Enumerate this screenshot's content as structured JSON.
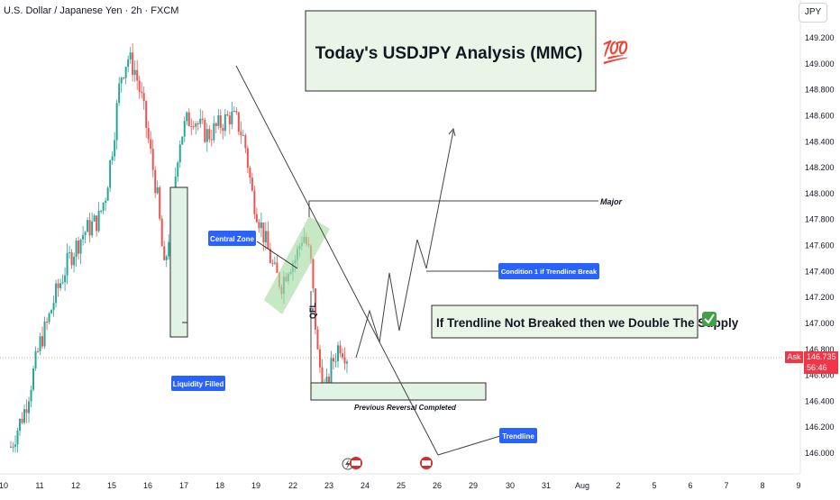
{
  "header": {
    "title": "U.S. Dollar / Japanese Yen · 2h · FXCM",
    "axis_unit": "JPY"
  },
  "price": {
    "ask_label": "Ask",
    "last": "146.735",
    "countdown": "56:46",
    "color": "#f23645"
  },
  "headline": {
    "text": "Today's USDJPY Analysis  (MMC)",
    "emoji": "💯"
  },
  "labels": {
    "major": "Major",
    "central_zone": "Central Zone",
    "liquidity_filled": "Liquidity Filled",
    "condition_1": "Condition 1 if Trendline Break",
    "double_supply": "If Trendline Not Breaked then we Double The Supply",
    "check_emoji": "✅",
    "previous_reversal": "Previous Reversal Completed",
    "trendline": "Trendline",
    "qfl": "QFL"
  },
  "colors": {
    "up": "#26a69a",
    "down": "#ef5350",
    "label_blue": "#2962ff",
    "zone_green": "#e1f3e4",
    "zone_border": "#2b2b2b",
    "band_green": "#b7e4b5"
  },
  "chart_data": {
    "type": "candlestick",
    "symbol": "USDJPY",
    "timeframe": "2h",
    "y_ticks": [
      "149.200",
      "149.000",
      "148.800",
      "148.600",
      "148.400",
      "148.200",
      "148.000",
      "147.800",
      "147.600",
      "147.400",
      "147.200",
      "147.000",
      "146.800",
      "146.600",
      "146.400",
      "146.200",
      "146.000"
    ],
    "x_ticks": [
      "10",
      "11",
      "12",
      "15",
      "16",
      "17",
      "18",
      "19",
      "22",
      "23",
      "24",
      "25",
      "26",
      "29",
      "30",
      "31",
      "Aug",
      "2",
      "5",
      "6",
      "7",
      "8",
      "9"
    ],
    "ylim": [
      145.95,
      149.27
    ],
    "grid": false,
    "price_path": [
      [
        0,
        146.05
      ],
      [
        1,
        146.2
      ],
      [
        2,
        146.35
      ],
      [
        3,
        146.6
      ],
      [
        4,
        146.85
      ],
      [
        5,
        147.0
      ],
      [
        6,
        147.2
      ],
      [
        7,
        147.35
      ],
      [
        8,
        147.5
      ],
      [
        9,
        147.6
      ],
      [
        10,
        147.7
      ],
      [
        11,
        147.75
      ],
      [
        12,
        147.8
      ],
      [
        13,
        148.0
      ],
      [
        14,
        148.4
      ],
      [
        15,
        148.9
      ],
      [
        16,
        149.05
      ],
      [
        17,
        148.95
      ],
      [
        18,
        148.7
      ],
      [
        19,
        148.35
      ],
      [
        20,
        148.0
      ],
      [
        21,
        147.4
      ],
      [
        22,
        147.85
      ],
      [
        23,
        148.4
      ],
      [
        24,
        148.55
      ],
      [
        25,
        148.6
      ],
      [
        26,
        148.5
      ],
      [
        27,
        148.45
      ],
      [
        28,
        148.5
      ],
      [
        29,
        148.55
      ],
      [
        30,
        148.6
      ],
      [
        31,
        148.55
      ],
      [
        32,
        148.4
      ],
      [
        33,
        148.0
      ],
      [
        34,
        147.8
      ],
      [
        35,
        147.6
      ],
      [
        36,
        147.4
      ],
      [
        37,
        147.3
      ],
      [
        38,
        147.45
      ],
      [
        39,
        147.5
      ],
      [
        40,
        147.7
      ],
      [
        41,
        147.5
      ],
      [
        42,
        146.75
      ],
      [
        43,
        146.45
      ],
      [
        44,
        146.7
      ],
      [
        45,
        146.85
      ],
      [
        46,
        146.75
      ]
    ],
    "zones": [
      {
        "name": "Liquidity Filled zone",
        "from": 146.9,
        "to": 148.05
      },
      {
        "name": "Previous Reversal Completed zone",
        "from": 146.44,
        "to": 146.57
      }
    ],
    "levels": [
      {
        "name": "Major",
        "value": 147.94
      }
    ],
    "projection": [
      147.07,
      146.8,
      147.35,
      146.88,
      147.65,
      147.4,
      148.5
    ],
    "current_price": 146.735
  }
}
